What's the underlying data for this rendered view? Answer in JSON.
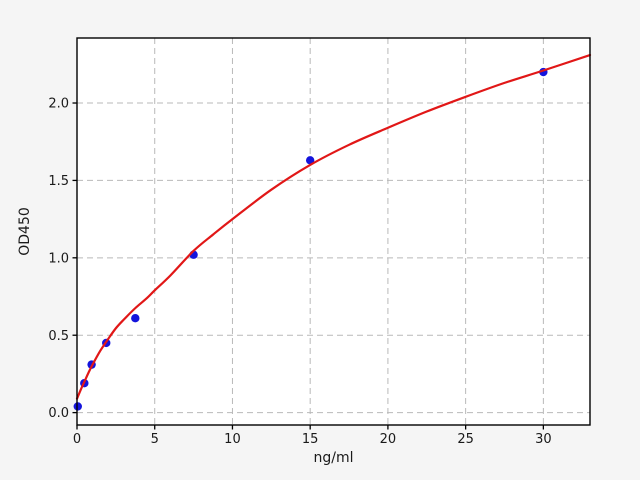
{
  "figure": {
    "background": "#f5f5f5",
    "plot_background": "#ffffff",
    "grid_color": "#b9b9b9",
    "spine_color": "#000000",
    "tick_color": "#000000",
    "text_color": "#1a1a1a"
  },
  "chart_data": {
    "type": "scatter",
    "title": "",
    "xlabel": "ng/ml",
    "ylabel": "OD450",
    "xlim": [
      0,
      33
    ],
    "ylim": [
      -0.08,
      2.42
    ],
    "grid": "dashed",
    "legend": "none",
    "x_ticks": [
      {
        "value": 0,
        "label": "0"
      },
      {
        "value": 5,
        "label": "5"
      },
      {
        "value": 10,
        "label": "10"
      },
      {
        "value": 15,
        "label": "15"
      },
      {
        "value": 20,
        "label": "20"
      },
      {
        "value": 25,
        "label": "25"
      },
      {
        "value": 30,
        "label": "30"
      }
    ],
    "y_ticks": [
      {
        "value": 0.0,
        "label": "0.0"
      },
      {
        "value": 0.5,
        "label": "0.5"
      },
      {
        "value": 1.0,
        "label": "1.0"
      },
      {
        "value": 1.5,
        "label": "1.5"
      },
      {
        "value": 2.0,
        "label": "2.0"
      }
    ],
    "series": [
      {
        "name": "standard-points",
        "kind": "scatter",
        "color": "#1414dc",
        "marker": "circle",
        "marker_radius": 4.2,
        "points": [
          [
            0.05,
            0.04
          ],
          [
            0.47,
            0.19
          ],
          [
            0.94,
            0.31
          ],
          [
            1.88,
            0.45
          ],
          [
            3.75,
            0.61
          ],
          [
            7.5,
            1.02
          ],
          [
            15,
            1.63
          ],
          [
            30,
            2.2
          ]
        ]
      },
      {
        "name": "fit-curve",
        "kind": "line",
        "color": "#e11717",
        "width": 2.2,
        "points": [
          [
            0,
            0.09
          ],
          [
            0.25,
            0.15
          ],
          [
            0.5,
            0.205
          ],
          [
            0.75,
            0.26
          ],
          [
            1,
            0.31
          ],
          [
            1.5,
            0.4
          ],
          [
            2,
            0.475
          ],
          [
            2.5,
            0.545
          ],
          [
            3,
            0.6
          ],
          [
            3.75,
            0.675
          ],
          [
            4.5,
            0.74
          ],
          [
            5,
            0.79
          ],
          [
            6,
            0.885
          ],
          [
            7.5,
            1.045
          ],
          [
            8.75,
            1.15
          ],
          [
            10,
            1.25
          ],
          [
            12.5,
            1.44
          ],
          [
            15,
            1.6
          ],
          [
            17.5,
            1.73
          ],
          [
            20,
            1.84
          ],
          [
            22.5,
            1.945
          ],
          [
            25,
            2.04
          ],
          [
            27.5,
            2.13
          ],
          [
            30,
            2.21
          ],
          [
            33,
            2.31
          ]
        ]
      }
    ]
  }
}
